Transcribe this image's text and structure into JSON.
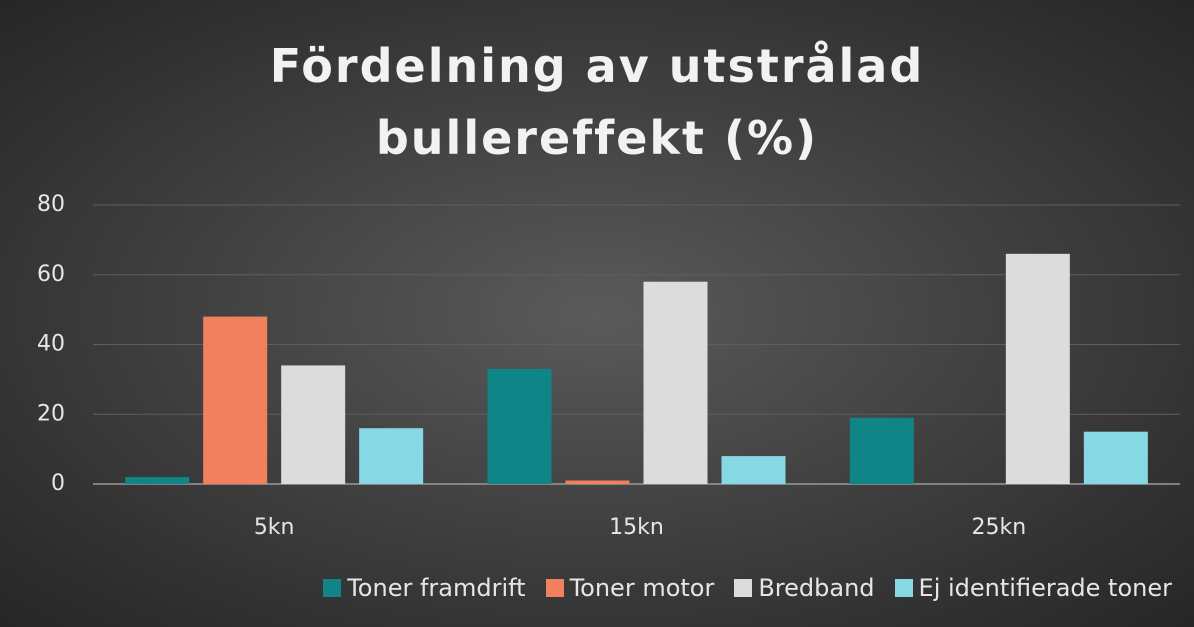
{
  "chart_data": {
    "type": "bar",
    "title": "Fördelning av utstrålad bullereffekt (%)",
    "categories": [
      "5kn",
      "15kn",
      "25kn"
    ],
    "series": [
      {
        "name": "Toner framdrift",
        "color": "#0f8588",
        "values": [
          2,
          33,
          19
        ]
      },
      {
        "name": "Toner motor",
        "color": "#f2805f",
        "values": [
          48,
          1,
          0
        ]
      },
      {
        "name": "Bredband",
        "color": "#dcdcdc",
        "values": [
          34,
          58,
          66
        ]
      },
      {
        "name": "Ej identifierade toner",
        "color": "#86d8e4",
        "values": [
          16,
          8,
          15
        ]
      }
    ],
    "ylim": [
      0,
      80
    ],
    "yticks": [
      0,
      20,
      40,
      60,
      80
    ],
    "grid": true,
    "legend": "bottom"
  }
}
